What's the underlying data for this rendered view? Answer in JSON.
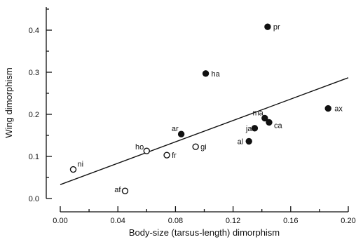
{
  "chart_data": {
    "type": "scatter",
    "xlabel": "Body-size (tarsus-length) dimorphism",
    "ylabel": "Wing dimorphism",
    "xlim": [
      -0.005,
      0.2
    ],
    "ylim": [
      0.0,
      0.455
    ],
    "x_ticks": [
      0.0,
      0.04,
      0.08,
      0.12,
      0.16,
      0.2
    ],
    "x_tick_labels": [
      "0.00",
      "0.04",
      "0.08",
      "0.12",
      "0.16",
      "0.20"
    ],
    "y_ticks": [
      0.0,
      0.1,
      0.2,
      0.3,
      0.4
    ],
    "y_tick_labels": [
      "0.0",
      "0.1",
      "0.2",
      "0.3",
      "0.4"
    ],
    "grid": false,
    "legend": "none",
    "points": [
      {
        "label": "pr",
        "x": 0.144,
        "y": 0.408,
        "filled": true
      },
      {
        "label": "ha",
        "x": 0.101,
        "y": 0.297,
        "filled": true
      },
      {
        "label": "ax",
        "x": 0.186,
        "y": 0.214,
        "filled": true
      },
      {
        "label": "ma",
        "x": 0.142,
        "y": 0.191,
        "filled": true
      },
      {
        "label": "ca",
        "x": 0.145,
        "y": 0.181,
        "filled": true
      },
      {
        "label": "ja",
        "x": 0.135,
        "y": 0.167,
        "filled": true
      },
      {
        "label": "ar",
        "x": 0.084,
        "y": 0.153,
        "filled": true
      },
      {
        "label": "al",
        "x": 0.131,
        "y": 0.136,
        "filled": true
      },
      {
        "label": "gi",
        "x": 0.094,
        "y": 0.123,
        "filled": false
      },
      {
        "label": "ho",
        "x": 0.06,
        "y": 0.113,
        "filled": false
      },
      {
        "label": "fr",
        "x": 0.074,
        "y": 0.103,
        "filled": false
      },
      {
        "label": "ni",
        "x": 0.009,
        "y": 0.069,
        "filled": false
      },
      {
        "label": "af",
        "x": 0.045,
        "y": 0.018,
        "filled": false
      }
    ],
    "regression_line": {
      "x": [
        0.0,
        0.2
      ],
      "y": [
        0.033,
        0.287
      ]
    }
  }
}
